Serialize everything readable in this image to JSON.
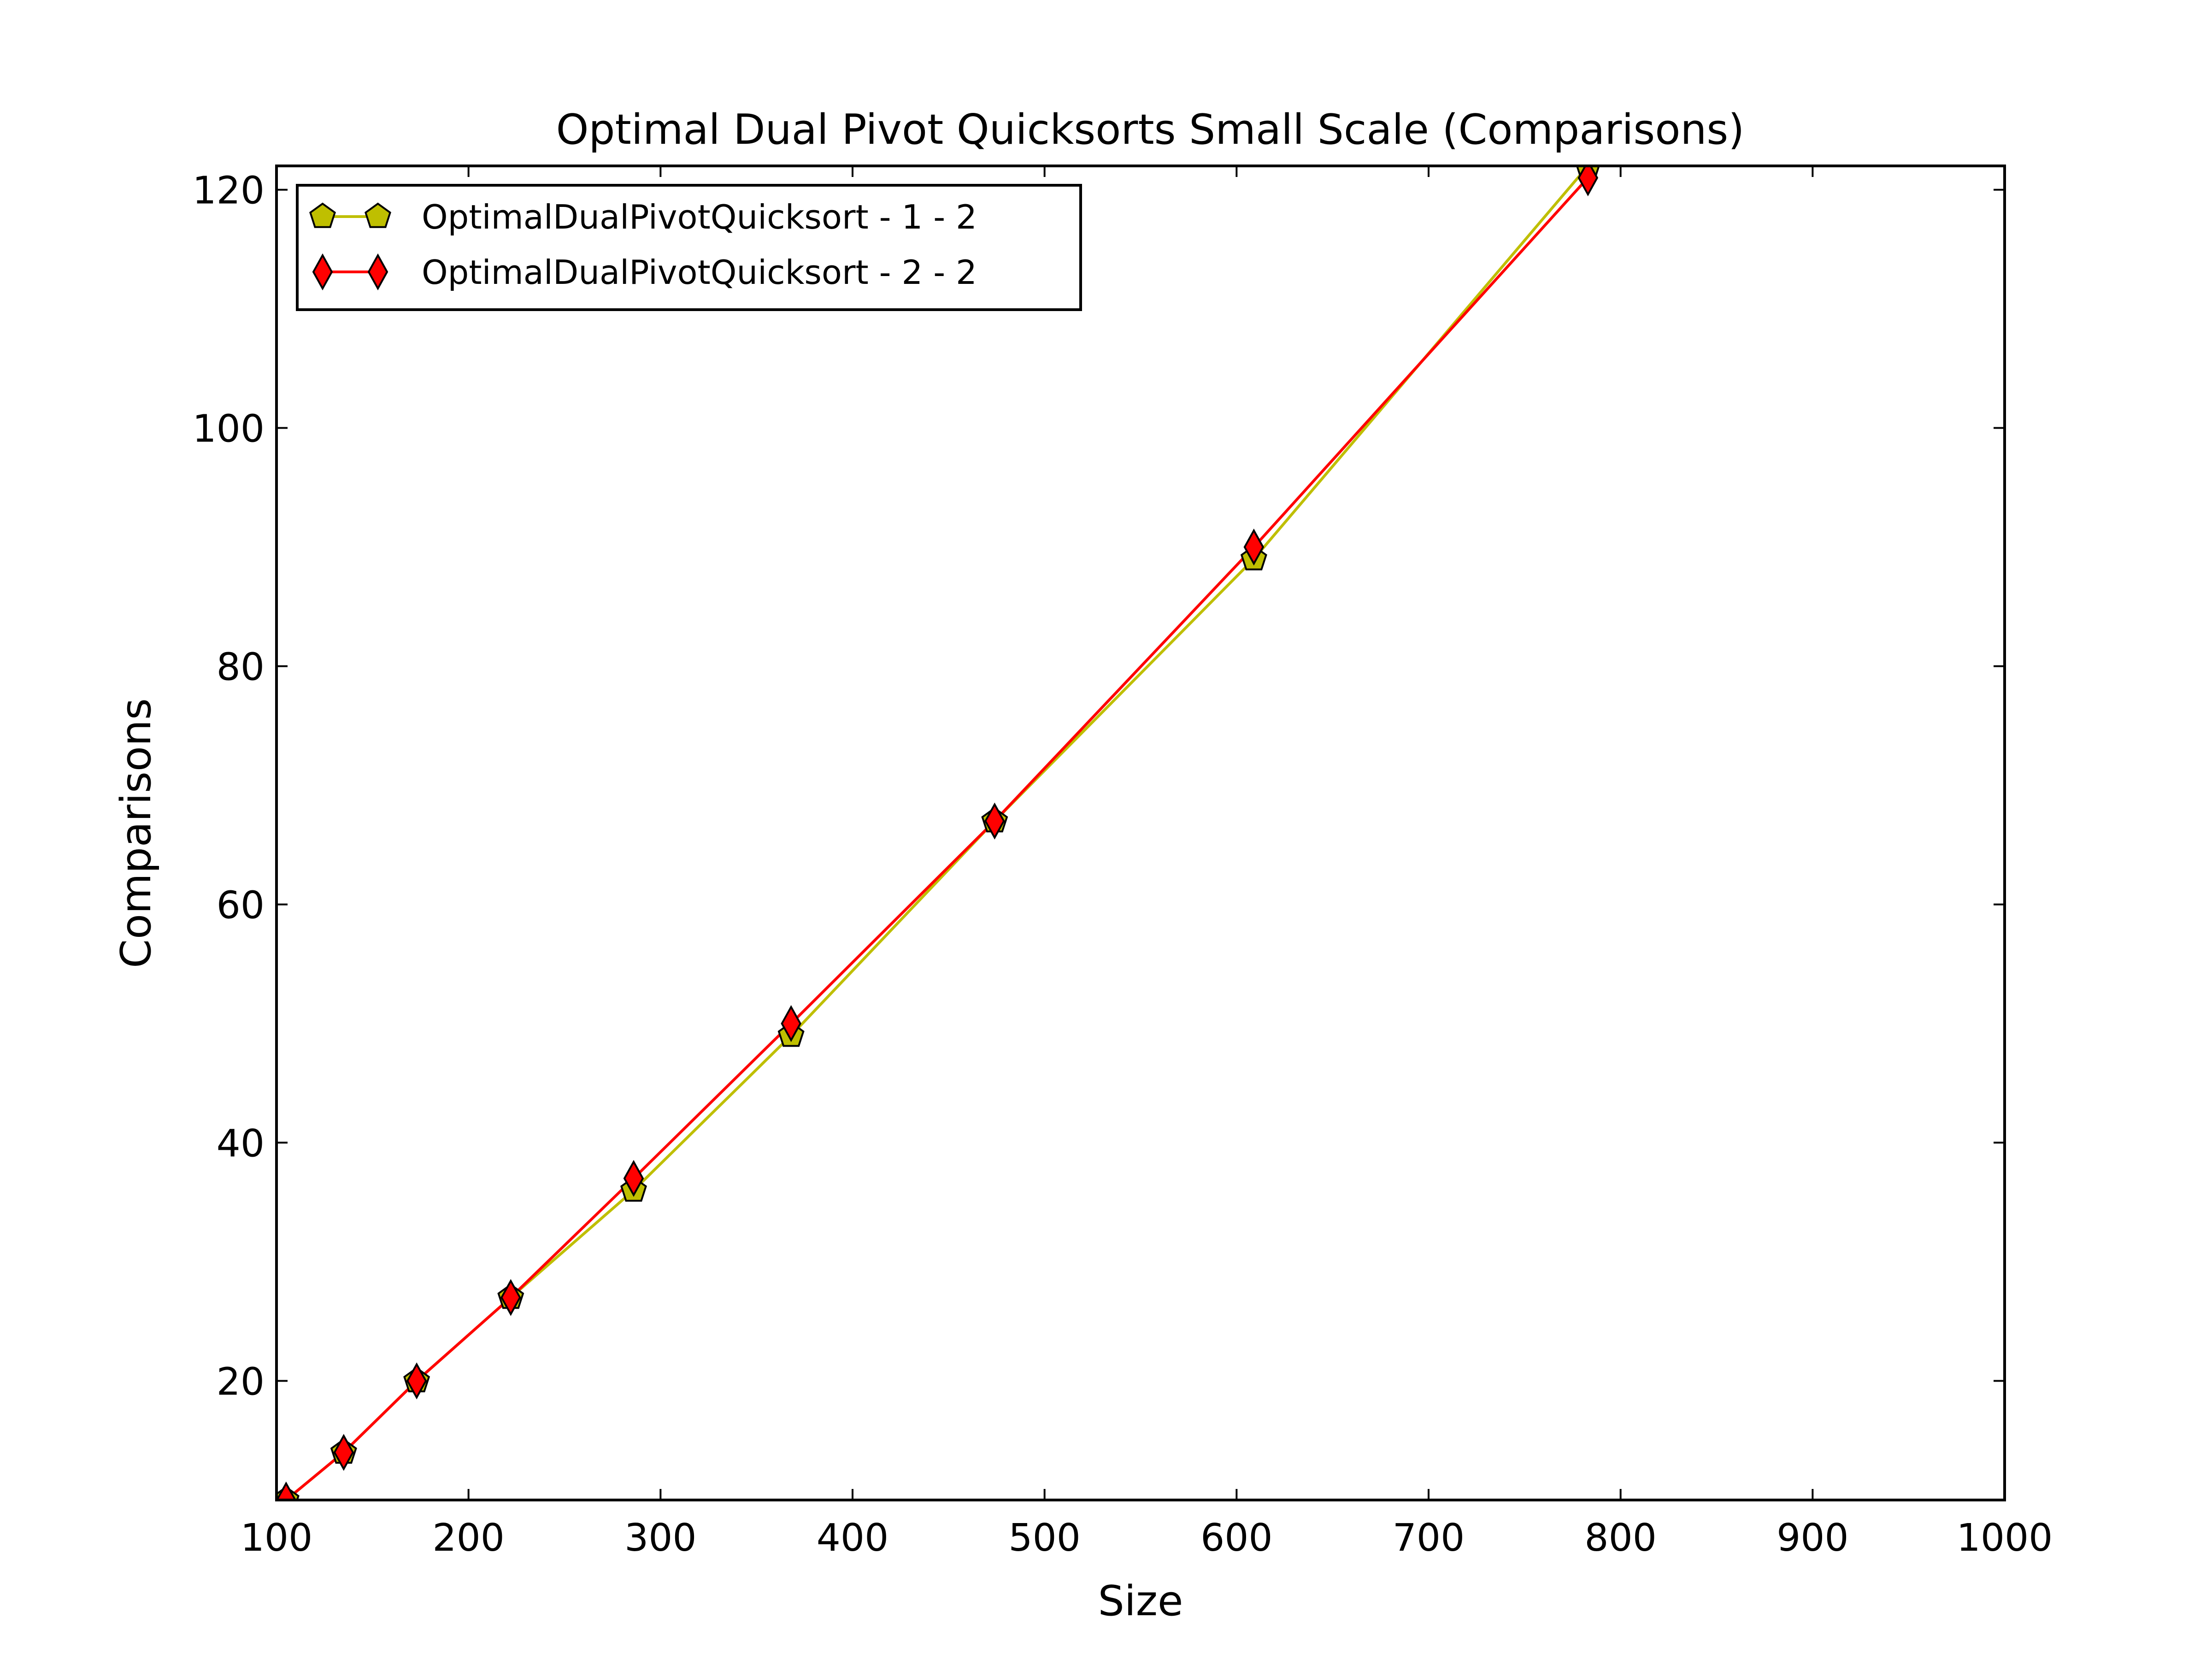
{
  "chart_data": {
    "type": "line",
    "title": "Optimal Dual Pivot Quicksorts Small Scale (Comparisons)",
    "xlabel": "Size",
    "ylabel": "Comparisons",
    "xlim": [
      100,
      1000
    ],
    "ylim": [
      10,
      122
    ],
    "xticks": [
      100,
      200,
      300,
      400,
      500,
      600,
      700,
      800,
      900,
      1000
    ],
    "yticks": [
      20,
      40,
      60,
      80,
      100,
      120
    ],
    "grid": false,
    "legend_position": "top-left",
    "series": [
      {
        "name": "OptimalDualPivotQuicksort - 1 - 2",
        "color": "#bfbf00",
        "marker": "pentagon",
        "x": [
          105,
          135,
          173,
          222,
          286,
          368,
          474,
          609,
          783
        ],
        "y": [
          10,
          14,
          20,
          27,
          36,
          49,
          67,
          89,
          122
        ]
      },
      {
        "name": "OptimalDualPivotQuicksort - 2 - 2",
        "color": "#ff0000",
        "marker": "diamond",
        "x": [
          105,
          135,
          173,
          222,
          286,
          368,
          474,
          609,
          783
        ],
        "y": [
          10,
          14,
          20,
          27,
          37,
          50,
          67,
          90,
          121
        ]
      }
    ]
  }
}
